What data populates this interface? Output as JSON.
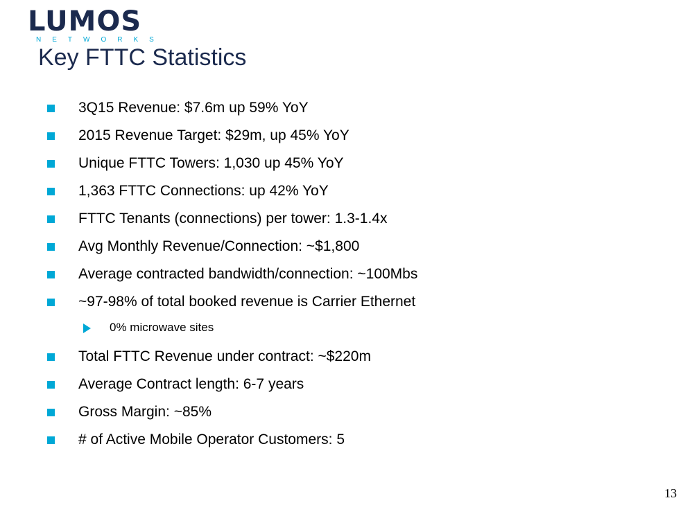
{
  "logo": {
    "name": "LUMOS",
    "tagline": "NETWORKS"
  },
  "title": "Key FTTC Statistics",
  "bullets": [
    {
      "text": "3Q15 Revenue: $7.6m up 59% YoY"
    },
    {
      "text": "2015 Revenue Target: $29m, up 45% YoY"
    },
    {
      "text": "Unique FTTC Towers: 1,030 up 45% YoY"
    },
    {
      "text": "1,363 FTTC Connections: up 42% YoY"
    },
    {
      "text": "FTTC Tenants (connections) per tower: 1.3-1.4x"
    },
    {
      "text": "Avg Monthly Revenue/Connection: ~$1,800"
    },
    {
      "text": "Average contracted bandwidth/connection: ~100Mbs"
    },
    {
      "text": "~97-98% of total booked revenue is Carrier Ethernet",
      "sub": [
        "0% microwave sites"
      ]
    },
    {
      "text": "Total FTTC Revenue under contract: ~$220m"
    },
    {
      "text": "Average Contract length: 6-7 years"
    },
    {
      "text": "Gross Margin: ~85%"
    },
    {
      "text": "# of Active Mobile Operator Customers: 5"
    }
  ],
  "page_number": "13"
}
